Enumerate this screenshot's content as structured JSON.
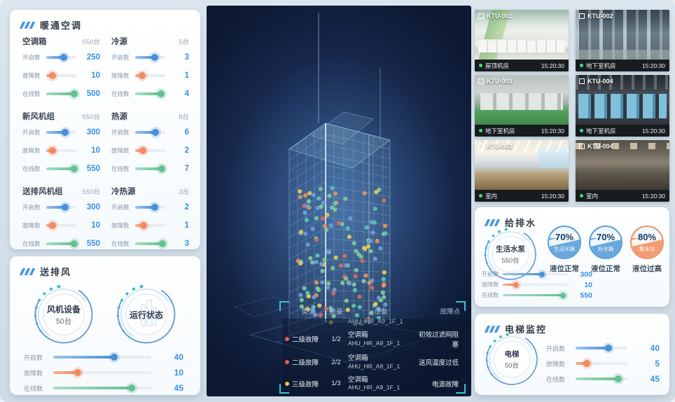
{
  "colors": {
    "accent_blue": "#3a8ee6",
    "slider_open": "#4a90d9",
    "slider_fault": "#f08a62",
    "slider_online": "#66bf92",
    "bracket_teal": "#38c4d0",
    "fault_dot_red": "#e05c5c",
    "fault_dot_yellow": "#e8c44a",
    "camera_status_dot": "#3fdc7f",
    "tank_blue": "#5b9fd8",
    "tank_orange": "#ef9466",
    "building_dot_palette": [
      "#7ecb9a",
      "#6f9fd8",
      "#5bc4b2",
      "#e8c95a",
      "#e8935a",
      "#d96a5a"
    ]
  },
  "hvac": {
    "title": "暖通空调",
    "groups": [
      {
        "name": "空调箱",
        "total": "550台",
        "sliders": [
          {
            "label": "开启数",
            "value": "250",
            "pct": 58,
            "type": "open"
          },
          {
            "label": "故障数",
            "value": "10",
            "pct": 22,
            "type": "fault"
          },
          {
            "label": "在线数",
            "value": "500",
            "pct": 92,
            "type": "online"
          }
        ]
      },
      {
        "name": "冷源",
        "total": "5台",
        "sliders": [
          {
            "label": "开启数",
            "value": "3",
            "pct": 66,
            "type": "open"
          },
          {
            "label": "故障数",
            "value": "1",
            "pct": 24,
            "type": "fault"
          },
          {
            "label": "在线数",
            "value": "4",
            "pct": 86,
            "type": "online"
          }
        ]
      },
      {
        "name": "新风机组",
        "total": "550台",
        "sliders": [
          {
            "label": "开启数",
            "value": "300",
            "pct": 62,
            "type": "open"
          },
          {
            "label": "故障数",
            "value": "10",
            "pct": 22,
            "type": "fault"
          },
          {
            "label": "在线数",
            "value": "550",
            "pct": 94,
            "type": "online"
          }
        ]
      },
      {
        "name": "热源",
        "total": "8台",
        "sliders": [
          {
            "label": "开启数",
            "value": "6",
            "pct": 68,
            "type": "open"
          },
          {
            "label": "故障数",
            "value": "2",
            "pct": 25,
            "type": "fault"
          },
          {
            "label": "在线数",
            "value": "7",
            "pct": 88,
            "type": "online"
          }
        ]
      },
      {
        "name": "送排风机组",
        "total": "550台",
        "sliders": [
          {
            "label": "开启数",
            "value": "300",
            "pct": 62,
            "type": "open"
          },
          {
            "label": "故障数",
            "value": "10",
            "pct": 22,
            "type": "fault"
          },
          {
            "label": "在线数",
            "value": "550",
            "pct": 94,
            "type": "online"
          }
        ]
      },
      {
        "name": "冷热源",
        "total": "3台",
        "sliders": [
          {
            "label": "开启数",
            "value": "2",
            "pct": 64,
            "type": "open"
          },
          {
            "label": "故障数",
            "value": "1",
            "pct": 28,
            "type": "fault"
          },
          {
            "label": "在线数",
            "value": "3",
            "pct": 90,
            "type": "online"
          }
        ]
      }
    ]
  },
  "fan": {
    "title": "送排风",
    "gauges": [
      {
        "line1": "风机设备",
        "line2": "50台",
        "icon": "fan-device"
      },
      {
        "line1": "运行状态",
        "line2": "",
        "icon": "building"
      }
    ],
    "sliders": [
      {
        "label": "开启数",
        "value": "40",
        "pct": 62,
        "type": "open"
      },
      {
        "label": "故障数",
        "value": "10",
        "pct": 25,
        "type": "fault"
      },
      {
        "label": "在线数",
        "value": "45",
        "pct": 80,
        "type": "online"
      }
    ]
  },
  "cameras": [
    {
      "id": "KTU-001",
      "location": "屋顶机房",
      "time": "15:20:30",
      "scene": "rooftop"
    },
    {
      "id": "KTU-002",
      "location": "地下室机房",
      "time": "15:20:30",
      "scene": "pipes"
    },
    {
      "id": "KTU-003",
      "location": "地下室机房",
      "time": "15:20:30",
      "scene": "machineroom"
    },
    {
      "id": "KTU-004",
      "location": "地下室机房",
      "time": "15:20:30",
      "scene": "bluemachines"
    },
    {
      "id": "KTU-003",
      "location": "室内",
      "time": "15:20:30",
      "scene": "office-light"
    },
    {
      "id": "KTU-004",
      "location": "室内",
      "time": "15:20:30",
      "scene": "office-dark"
    }
  ],
  "water": {
    "title": "给排水",
    "gauge": {
      "line1": "生活水泵",
      "line2": "550台"
    },
    "sliders": [
      {
        "label": "开启数",
        "value": "300",
        "pct": 60,
        "type": "open"
      },
      {
        "label": "故障数",
        "value": "10",
        "pct": 20,
        "type": "fault"
      },
      {
        "label": "在线数",
        "value": "550",
        "pct": 92,
        "type": "online"
      }
    ],
    "tanks": [
      {
        "pct": "70%",
        "name": "生活水箱",
        "status": "液位正常",
        "color": "blue"
      },
      {
        "pct": "70%",
        "name": "补水箱",
        "status": "液位正常",
        "color": "blue"
      },
      {
        "pct": "80%",
        "name": "集水坑",
        "status": "液位过高",
        "color": "orange"
      }
    ]
  },
  "elevator": {
    "title": "电梯监控",
    "gauge": {
      "line1": "电梯",
      "line2": "50台"
    },
    "sliders": [
      {
        "label": "开启数",
        "value": "40",
        "pct": 64,
        "type": "open"
      },
      {
        "label": "故障数",
        "value": "5",
        "pct": 22,
        "type": "fault"
      },
      {
        "label": "在线数",
        "value": "45",
        "pct": 82,
        "type": "online"
      }
    ]
  },
  "faults": {
    "headers": [
      "类型",
      "数量",
      "设备",
      "故障点"
    ],
    "partial_device": "AHU_HR_A9_1F_1",
    "rows": [
      {
        "level": "二级故障",
        "severity": "red",
        "qty": "1/2",
        "device_type": "空调箱",
        "device_id": "AHU_HR_A9_1F_1",
        "fault": "初效过滤网阻塞"
      },
      {
        "level": "二级故障",
        "severity": "red",
        "qty": "2/2",
        "device_type": "空调箱",
        "device_id": "AHU_HR_A9_1F_1",
        "fault": "送风温度过低"
      },
      {
        "level": "三级故障",
        "severity": "yellow",
        "qty": "1/3",
        "device_type": "空调箱",
        "device_id": "AHU_HR_A9_1F_1",
        "fault": "电源故障"
      }
    ]
  }
}
